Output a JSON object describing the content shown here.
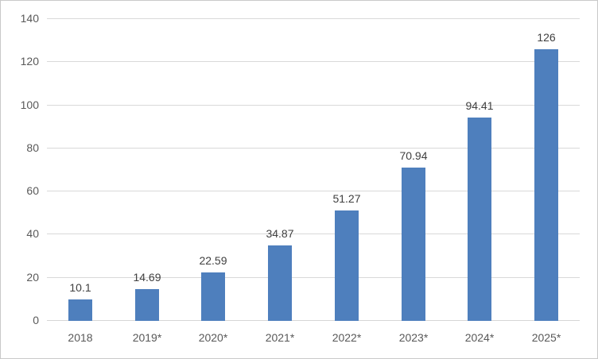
{
  "chart_data": {
    "type": "bar",
    "title": "",
    "xlabel": "",
    "ylabel": "",
    "categories": [
      "2018",
      "2019*",
      "2020*",
      "2021*",
      "2022*",
      "2023*",
      "2024*",
      "2025*"
    ],
    "values": [
      10.1,
      14.69,
      22.59,
      34.87,
      51.27,
      70.94,
      94.41,
      126
    ],
    "data_labels": [
      "10.1",
      "14.69",
      "22.59",
      "34.87",
      "51.27",
      "70.94",
      "94.41",
      "126"
    ],
    "ylim": [
      0,
      140
    ],
    "yticks": [
      0,
      20,
      40,
      60,
      80,
      100,
      120,
      140
    ],
    "grid": true,
    "legend_position": "none",
    "colors": {
      "bar": "#4e7fbd",
      "gridline": "#d9d9d9",
      "axis_line": "#d6d6d6",
      "axis_label": "#595959",
      "data_label": "#404040",
      "background": "#ffffff",
      "figure_border": "#c9c9c9"
    }
  }
}
